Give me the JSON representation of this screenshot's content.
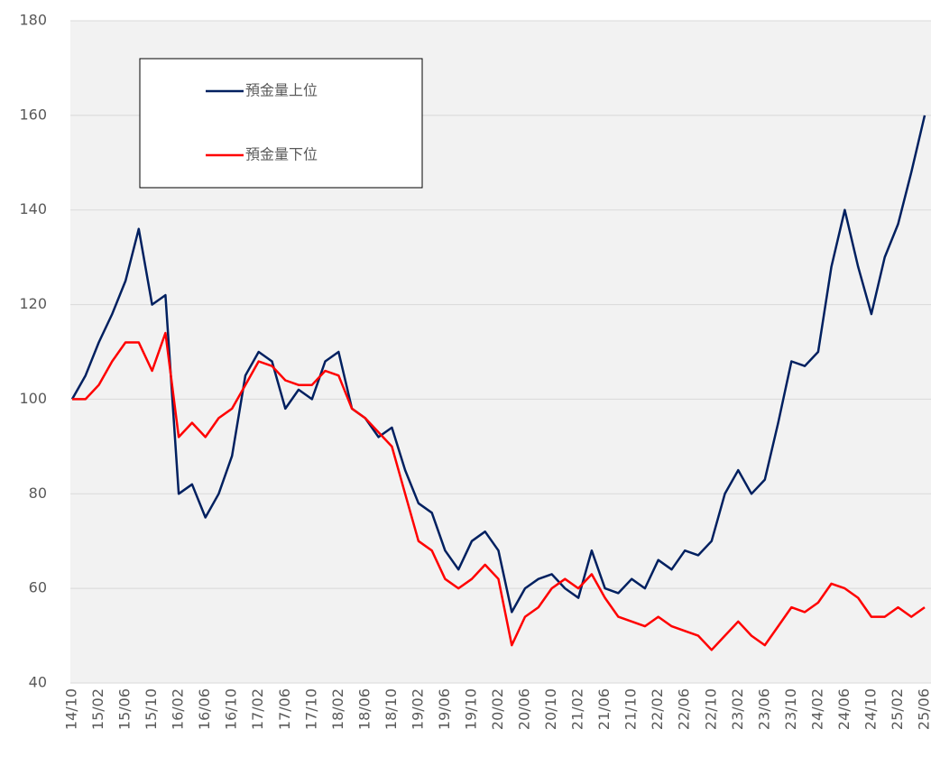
{
  "chart_data": {
    "type": "line",
    "categories": [
      "14/10",
      null,
      "15/02",
      null,
      "15/06",
      null,
      "15/10",
      null,
      "16/02",
      null,
      "16/06",
      null,
      "16/10",
      null,
      "17/02",
      null,
      "17/06",
      null,
      "17/10",
      null,
      "18/02",
      null,
      "18/06",
      null,
      "18/10",
      null,
      "19/02",
      null,
      "19/06",
      null,
      "19/10",
      null,
      "20/02",
      null,
      "20/06",
      null,
      "20/10",
      null,
      "21/02",
      null,
      "21/06",
      null,
      "21/10",
      null,
      "22/02",
      null,
      "22/06",
      null,
      "22/10",
      null,
      "23/02",
      null,
      "23/06",
      null,
      "23/10",
      null,
      "24/02",
      null,
      "24/06",
      null,
      "24/10",
      null,
      "25/02",
      null,
      "25/06"
    ],
    "series": [
      {
        "name": "預金量上位",
        "color": "#002060",
        "values": [
          100,
          105,
          112,
          118,
          125,
          136,
          120,
          122,
          80,
          82,
          75,
          80,
          88,
          105,
          110,
          108,
          98,
          102,
          100,
          108,
          110,
          98,
          96,
          92,
          94,
          85,
          78,
          76,
          68,
          64,
          70,
          72,
          68,
          55,
          60,
          62,
          63,
          60,
          58,
          68,
          60,
          59,
          62,
          60,
          66,
          64,
          68,
          67,
          70,
          80,
          85,
          80,
          83,
          95,
          108,
          107,
          110,
          128,
          140,
          128,
          118,
          130,
          137,
          148,
          160
        ]
      },
      {
        "name": "預金量下位",
        "color": "#ff0000",
        "values": [
          100,
          100,
          103,
          108,
          112,
          112,
          106,
          114,
          92,
          95,
          92,
          96,
          98,
          103,
          108,
          107,
          104,
          103,
          103,
          106,
          105,
          98,
          96,
          93,
          90,
          80,
          70,
          68,
          62,
          60,
          62,
          65,
          62,
          48,
          54,
          56,
          60,
          62,
          60,
          63,
          58,
          54,
          53,
          52,
          54,
          52,
          51,
          50,
          47,
          50,
          53,
          50,
          48,
          52,
          56,
          55,
          57,
          61,
          60,
          58,
          54,
          54,
          56,
          54,
          56
        ]
      }
    ],
    "ylim": [
      40,
      180
    ],
    "yticks": [
      40,
      60,
      80,
      100,
      120,
      140,
      160,
      180
    ],
    "grid": true
  }
}
